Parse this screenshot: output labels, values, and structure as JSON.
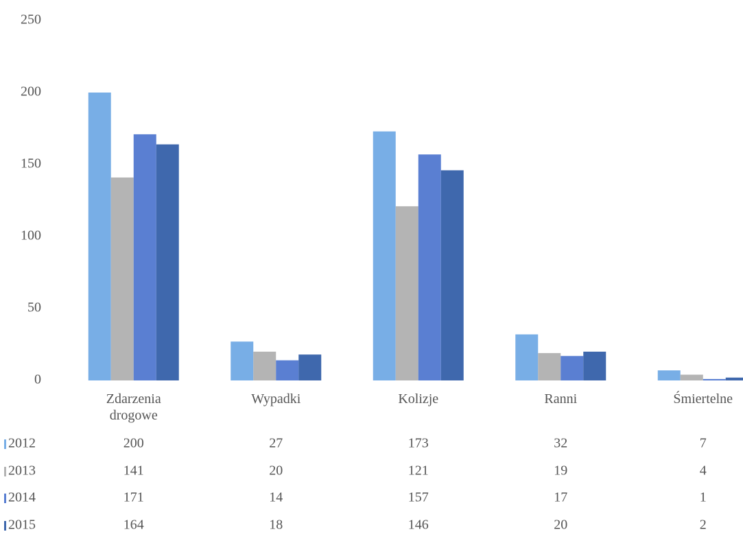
{
  "chart_data": {
    "type": "bar",
    "categories": [
      "Zdarzenia drogowe",
      "Wypadki",
      "Kolizje",
      "Ranni",
      "Śmiertelne"
    ],
    "series": [
      {
        "name": "2012",
        "color": "#78aee6",
        "values": [
          200,
          27,
          173,
          32,
          7
        ]
      },
      {
        "name": "2013",
        "color": "#b4b4b4",
        "values": [
          141,
          20,
          121,
          19,
          4
        ]
      },
      {
        "name": "2014",
        "color": "#5a7fd2",
        "values": [
          171,
          14,
          157,
          17,
          1
        ]
      },
      {
        "name": "2015",
        "color": "#3f68ad",
        "values": [
          164,
          18,
          146,
          20,
          2
        ]
      }
    ],
    "ylim": [
      0,
      250
    ],
    "yticks": [
      0,
      50,
      100,
      150,
      200,
      250
    ],
    "grid": false
  }
}
